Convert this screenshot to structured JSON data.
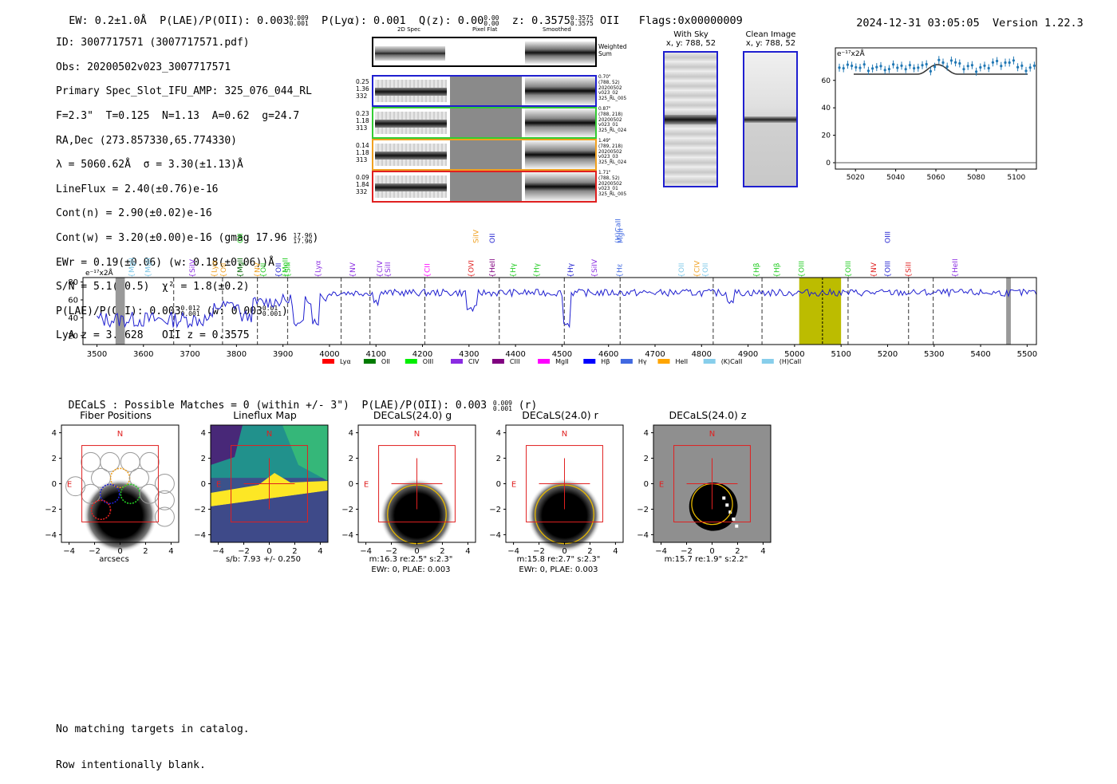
{
  "header": {
    "ew": "EW: 0.2±1.0Å",
    "plae_label": "P(LAE)/P(OII): 0.003",
    "plae_hi": "0.009",
    "plae_lo": "0.001",
    "plya": "P(Lyα): 0.001",
    "qz_label": "Q(z): 0.00",
    "qz_hi": "0.00",
    "qz_lo": "0.00",
    "z_label": "z: 0.3575",
    "z_hi": "0.3575",
    "z_lo": "0.3575",
    "z_line": "OII",
    "flags": "Flags:0x00000009",
    "datetime": "2024-12-31 03:05:05",
    "version": "Version 1.22.3"
  },
  "info": {
    "id": "ID: 3007717571 (3007717571.pdf)",
    "obs": "Obs: 20200502v023_3007717571",
    "primary": "Primary Spec_Slot_IFU_AMP: 325_076_044_RL",
    "fparams": "F=2.3\"  T=0.125  N=1.13  A=0.62  g=24.7",
    "radec": "RA,Dec (273.857330,65.774330)",
    "lambda": "λ = 5060.62Å  σ = 3.30(±1.13)Å",
    "lineflux": "LineFlux = 2.40(±0.76)e-16",
    "contn": "Cont(n) = 2.90(±0.02)e-16",
    "contw": "Cont(w) = 3.20(±0.00)e-16 (gmag 17.96",
    "contw_hi": "17.96",
    "contw_lo": "17.96",
    "contw_end": ")",
    "ewr": "EWr = 0.19(±0.06) (w: 0.18(±0.06))Å",
    "sn": "S/N = 5.1(±0.5)  χ² = 1.8(±0.2)",
    "plae": "P(LAE)/P(OII): 0.003",
    "plae_hi": "0.012",
    "plae_lo": "0.001",
    "plae_w": "(w: 0.003",
    "plae_w_hi": "0.01",
    "plae_w_lo": "0.001",
    "plae_end": ")",
    "lyaz": "LyA z = 3.1628   OII z = 0.3575"
  },
  "cutouts": {
    "col_2d": "2D Spec",
    "col_flat": "Pixel Flat",
    "col_smooth": "Smoothed",
    "weighted": "Weighted\nSum",
    "rows": [
      {
        "left": "0.25\n1.36\n332",
        "right": "0.70\"\n(788, 52)\n20200502\nv023_02\n325_RL_005",
        "color": "#1f1fd0"
      },
      {
        "left": "0.23\n1.18\n313",
        "right": "0.87\"\n(788, 218)\n20200502\nv023_01\n325_RL_024",
        "color": "#33cc33"
      },
      {
        "left": "0.14\n1.18\n313",
        "right": "1.49\"\n(789, 218)\n20200502\nv023_03\n325_RL_024",
        "color": "#f0a020"
      },
      {
        "left": "0.09\n1.84\n332",
        "right": "1.71\"\n(788, 52)\n20200502\nv023_01\n325_RL_005",
        "color": "#e02020"
      }
    ]
  },
  "sky": {
    "with_sky_title": "With Sky",
    "with_sky_coords": "x, y: 788, 52",
    "clean_title": "Clean Image",
    "clean_coords": "x, y: 788, 52"
  },
  "zoom_plot": {
    "ylabel": "e⁻¹⁷x2Å",
    "yticks": [
      "60",
      "40",
      "20",
      "0"
    ],
    "xticks": [
      "5020",
      "5040",
      "5060",
      "5080",
      "5100"
    ]
  },
  "spectrum": {
    "ylabel": "e⁻¹⁷x2Å",
    "yticks": [
      "80",
      "60",
      "40",
      "20"
    ],
    "xticks": [
      "3500",
      "3600",
      "3700",
      "3800",
      "3900",
      "4000",
      "4100",
      "4200",
      "4300",
      "4400",
      "4500",
      "4600",
      "4700",
      "4800",
      "4900",
      "5000",
      "5100",
      "5200",
      "5300",
      "5400",
      "5500"
    ],
    "line_labels": [
      {
        "t": "MgII",
        "c": "#7ec8e8",
        "w": 3575
      },
      {
        "t": "MgII",
        "c": "#7ec8e8",
        "w": 3610
      },
      {
        "t": "SiIV",
        "c": "#8a2be2",
        "w": 3705
      },
      {
        "t": "Lyα",
        "c": "#f0a020",
        "w": 3752
      },
      {
        "t": "OII",
        "c": "#f0a020",
        "w": 3772
      },
      {
        "t": "MgII",
        "c": "#006400",
        "w": 3808
      },
      {
        "t": "NV",
        "c": "#f0a020",
        "w": 3845
      },
      {
        "t": "OII",
        "c": "#22cc22",
        "w": 3858
      },
      {
        "t": "OII",
        "c": "#1f1fd0",
        "w": 3890
      },
      {
        "t": "MgII",
        "c": "#22cc22",
        "w": 3905
      },
      {
        "t": "SiII",
        "c": "#22cc22",
        "w": 3910
      },
      {
        "t": "Lyα",
        "c": "#8a2be2",
        "w": 3975
      },
      {
        "t": "NV",
        "c": "#8a2be2",
        "w": 4050
      },
      {
        "t": "CIV",
        "c": "#8a2be2",
        "w": 4108
      },
      {
        "t": "SiII",
        "c": "#8a2be2",
        "w": 4125
      },
      {
        "t": "CII",
        "c": "#ff00ff",
        "w": 4210
      },
      {
        "t": "OVI",
        "c": "#e02020",
        "w": 4305
      },
      {
        "t": "HeII",
        "c": "#800080",
        "w": 4350
      },
      {
        "t": "Hγ",
        "c": "#22cc22",
        "w": 4395
      },
      {
        "t": "Hγ",
        "c": "#22cc22",
        "w": 4445
      },
      {
        "t": "Hγ",
        "c": "#1f1fd0",
        "w": 4518
      },
      {
        "t": "SiIV",
        "c": "#8a2be2",
        "w": 4570
      },
      {
        "t": "Hε",
        "c": "#4169e1",
        "w": 4624
      },
      {
        "t": "OII",
        "c": "#7ec8e8",
        "w": 4757
      },
      {
        "t": "CIV",
        "c": "#f0a020",
        "w": 4790
      },
      {
        "t": "OII",
        "c": "#7ec8e8",
        "w": 4808
      },
      {
        "t": "Hβ",
        "c": "#22cc22",
        "w": 4918
      },
      {
        "t": "Hβ",
        "c": "#22cc22",
        "w": 4962
      },
      {
        "t": "OIII",
        "c": "#22cc22",
        "w": 5015
      },
      {
        "t": "OIII",
        "c": "#22cc22",
        "w": 5115
      },
      {
        "t": "NV",
        "c": "#e02020",
        "w": 5170
      },
      {
        "t": "OIII",
        "c": "#1f1fd0",
        "w": 5200
      },
      {
        "t": "SiII",
        "c": "#e02020",
        "w": 5245
      },
      {
        "t": "HeII",
        "c": "#8a2be2",
        "w": 5345
      }
    ],
    "upper_labels": [
      {
        "t": "OII",
        "c": "#22cc22",
        "w": 3808
      },
      {
        "t": "SiIV",
        "c": "#f0a020",
        "w": 4315
      },
      {
        "t": "OII",
        "c": "#1f1fd0",
        "w": 4350
      },
      {
        "t": "(H)CaII",
        "c": "#4169e1",
        "w": 4620
      },
      {
        "t": "MgII",
        "c": "#4169e1",
        "w": 4625
      },
      {
        "t": "OIII",
        "c": "#1f1fd0",
        "w": 5200
      }
    ],
    "legend": [
      {
        "t": "Lyα",
        "c": "#ff0000"
      },
      {
        "t": "OII",
        "c": "#007a00"
      },
      {
        "t": "OIII",
        "c": "#00ee00"
      },
      {
        "t": "CIV",
        "c": "#8a2be2"
      },
      {
        "t": "CIII",
        "c": "#800080"
      },
      {
        "t": "MgII",
        "c": "#ff00ff"
      },
      {
        "t": "Hβ",
        "c": "#0000ff"
      },
      {
        "t": "Hγ",
        "c": "#4169e1"
      },
      {
        "t": "HeII",
        "c": "#ffa500"
      },
      {
        "t": "(K)CaII",
        "c": "#87ceeb"
      },
      {
        "t": "(H)CaII",
        "c": "#87ceeb"
      }
    ],
    "xrange": [
      3470,
      5520
    ],
    "yrange": [
      10,
      85
    ],
    "band_range": [
      5010,
      5100
    ],
    "band_center": 5060
  },
  "decals": {
    "summary": "DECaLS : Possible Matches = 0 (within +/- 3\")  P(LAE)/P(OII): 0.003",
    "summary_hi": "0.009",
    "summary_lo": "0.001",
    "summary_end": "(r)",
    "panels": [
      {
        "title": "Fiber Positions",
        "sub1": "arcsecs",
        "sub2": ""
      },
      {
        "title": "Lineflux Map",
        "sub1": "s/b: 7.93 +/- 0.250",
        "sub2": ""
      },
      {
        "title": "DECaLS(24.0) g",
        "sub1": "m:16.3  re:2.5\"  s:2.3\"",
        "sub2": "EWr: 0, PLAE: 0.003"
      },
      {
        "title": "DECaLS(24.0) r",
        "sub1": "m:15.8  re:2.7\"  s:2.3\"",
        "sub2": "EWr: 0, PLAE: 0.003"
      },
      {
        "title": "DECaLS(24.0) z",
        "sub1": "m:15.7  re:1.9\"  s:2.2\"",
        "sub2": ""
      }
    ],
    "axis_ticks": [
      "4",
      "2",
      "0",
      "−2",
      "−4"
    ],
    "x_ticks": [
      "−4",
      "−2",
      "0",
      "2",
      "4"
    ],
    "north": "N",
    "east": "E"
  },
  "footer": {
    "line1": "No matching targets in catalog.",
    "line2": "Row intentionally blank."
  }
}
